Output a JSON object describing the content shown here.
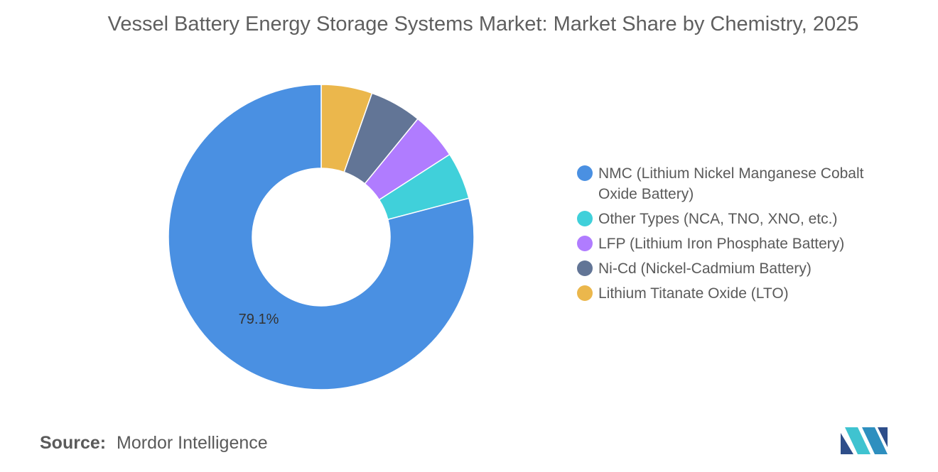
{
  "title": "Vessel Battery Energy Storage Systems Market: Market Share by Chemistry, 2025",
  "source": {
    "label": "Source:",
    "text": "Mordor Intelligence"
  },
  "chart_data": {
    "type": "pie",
    "donut": true,
    "legend_position": "right",
    "slices": [
      {
        "label": "NMC (Lithium Nickel Manganese Cobalt Oxide Battery)",
        "value": 79.1,
        "color": "#4a90e2",
        "data_label": "79.1%"
      },
      {
        "label": "Other Types (NCA, TNO, XNO, etc.)",
        "value": 5.0,
        "color": "#40d0da",
        "data_label": ""
      },
      {
        "label": "LFP (Lithium Iron Phosphate Battery)",
        "value": 5.0,
        "color": "#b07cff",
        "data_label": ""
      },
      {
        "label": "Ni-Cd (Nickel-Cadmium Battery)",
        "value": 5.5,
        "color": "#627596",
        "data_label": ""
      },
      {
        "label": "Lithium Titanate Oxide (LTO)",
        "value": 5.4,
        "color": "#ebb74c",
        "data_label": ""
      }
    ]
  }
}
